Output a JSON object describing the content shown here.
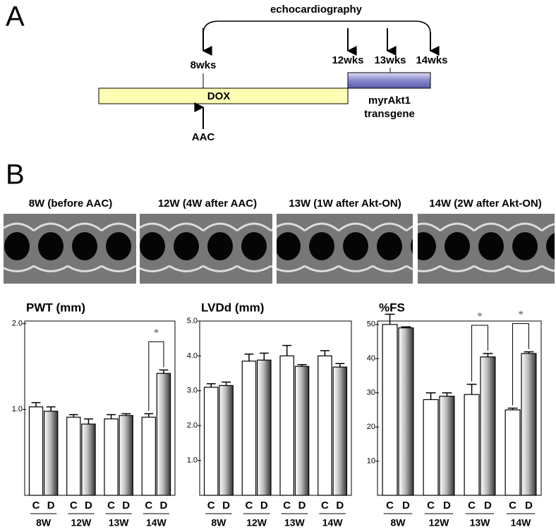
{
  "panel_a": {
    "label": "A",
    "bracket_label": "echocardiography",
    "timepoints": [
      "8wks",
      "12wks",
      "13wks",
      "14wks"
    ],
    "dox": "DOX",
    "aac": "AAC",
    "transgene": [
      "myrAkt1",
      "transgene"
    ]
  },
  "panel_b": {
    "label": "B",
    "captions": [
      "8W (before AAC)",
      "12W (4W after AAC)",
      "13W (1W after Akt-ON)",
      "14W (2W after Akt-ON)"
    ]
  },
  "chart_data": [
    {
      "type": "bar",
      "title": "PWT (mm)",
      "categories": [
        "8W",
        "12W",
        "13W",
        "14W"
      ],
      "series": [
        {
          "name": "C",
          "color": "#ffffff",
          "values": [
            1.03,
            0.91,
            0.89,
            0.91
          ],
          "errors": [
            0.05,
            0.03,
            0.05,
            0.04
          ]
        },
        {
          "name": "D",
          "color": "#888888",
          "values": [
            0.98,
            0.83,
            0.93,
            1.42
          ],
          "errors": [
            0.05,
            0.06,
            0.02,
            0.04
          ]
        }
      ],
      "ylim": [
        0,
        2.03
      ],
      "yticks": [
        {
          "value": 1,
          "label": "1.0"
        },
        {
          "value": 2,
          "label": "2.0"
        }
      ],
      "significance": [
        {
          "category": "14W",
          "label": "*"
        }
      ]
    },
    {
      "type": "bar",
      "title": "LVDd (mm)",
      "categories": [
        "8W",
        "12W",
        "13W",
        "14W"
      ],
      "series": [
        {
          "name": "C",
          "color": "#ffffff",
          "values": [
            3.1,
            3.85,
            4.0,
            4.0
          ],
          "errors": [
            0.1,
            0.2,
            0.3,
            0.15
          ]
        },
        {
          "name": "D",
          "color": "#888888",
          "values": [
            3.15,
            3.88,
            3.7,
            3.68
          ],
          "errors": [
            0.1,
            0.2,
            0.05,
            0.1
          ]
        }
      ],
      "ylim": [
        0,
        5
      ],
      "yticks": [
        {
          "value": 1,
          "label": "1.0"
        },
        {
          "value": 2,
          "label": "2.0"
        },
        {
          "value": 3,
          "label": "3.0"
        },
        {
          "value": 4,
          "label": "4.0"
        },
        {
          "value": 5,
          "label": "5.0"
        }
      ],
      "significance": []
    },
    {
      "type": "bar",
      "title": "%FS",
      "categories": [
        "8W",
        "12W",
        "13W",
        "14W"
      ],
      "series": [
        {
          "name": "C",
          "color": "#ffffff",
          "values": [
            50,
            28,
            29.5,
            25
          ],
          "errors": [
            3,
            2,
            3,
            0.5
          ]
        },
        {
          "name": "D",
          "color": "#888888",
          "values": [
            49,
            29,
            40.5,
            41.5
          ],
          "errors": [
            0.3,
            1,
            1,
            0.5
          ]
        }
      ],
      "ylim": [
        0,
        51
      ],
      "yticks": [
        10,
        20,
        30,
        40,
        50
      ],
      "significance": [
        {
          "category": "13W",
          "label": "*"
        },
        {
          "category": "14W",
          "label": "*"
        }
      ]
    }
  ]
}
